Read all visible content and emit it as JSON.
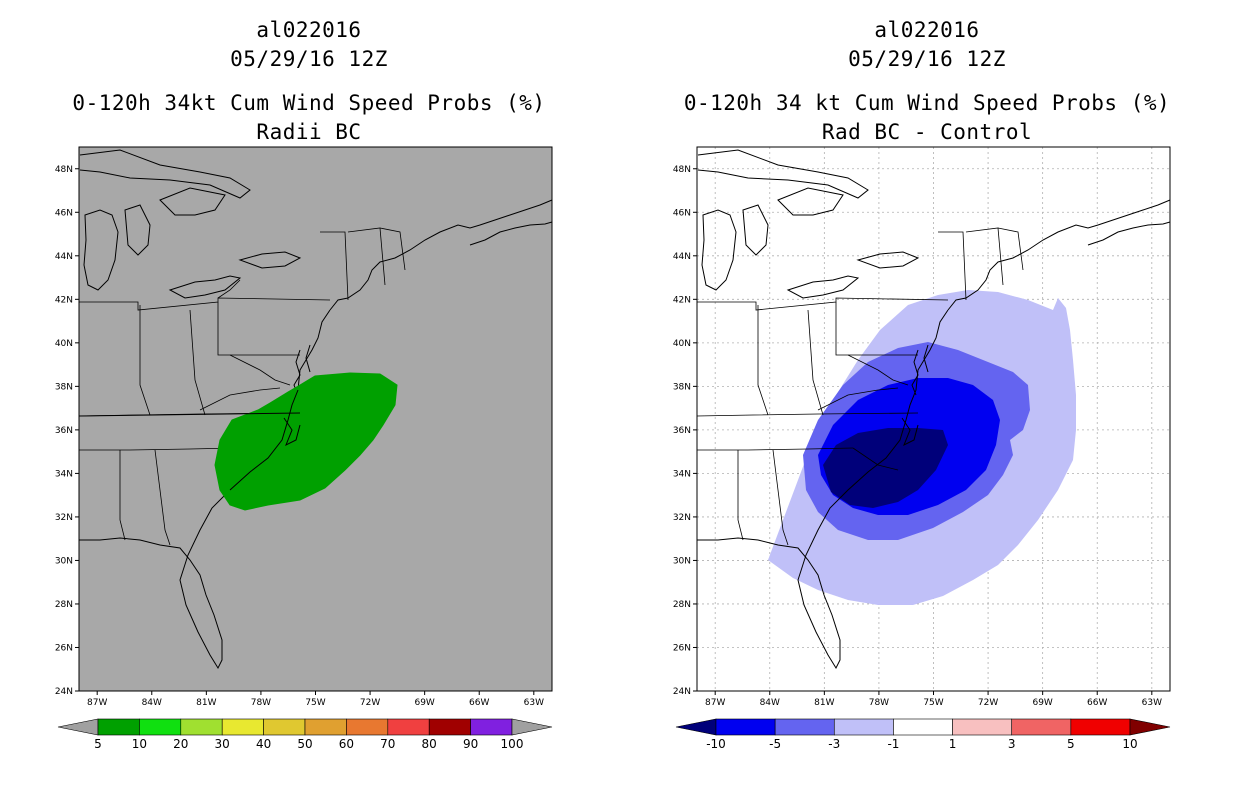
{
  "left": {
    "storm_id": "al022016",
    "datetime": "05/29/16 12Z",
    "title": "0-120h 34kt Cum Wind Speed Probs (%)",
    "subtitle": "Radii BC",
    "map_background": "#a8a8a8",
    "colorbar": {
      "labels": [
        "5",
        "10",
        "20",
        "30",
        "40",
        "50",
        "60",
        "70",
        "80",
        "90",
        "100"
      ],
      "colors": [
        "#a0a0a0",
        "#00a000",
        "#10e010",
        "#a0e030",
        "#e8e830",
        "#e0c830",
        "#e0a030",
        "#e87830",
        "#f04040",
        "#a00000",
        "#8020e0",
        "#a0a0a0"
      ]
    }
  },
  "right": {
    "storm_id": "al022016",
    "datetime": "05/29/16 12Z",
    "title": "0-120h 34 kt Cum Wind Speed Probs (%)",
    "subtitle": "Rad BC - Control",
    "map_background": "#ffffff",
    "colorbar": {
      "labels": [
        "-10",
        "-5",
        "-3",
        "-1",
        "1",
        "3",
        "5",
        "10"
      ],
      "colors": [
        "#00007a",
        "#0000f0",
        "#6464f0",
        "#c0c0f8",
        "#ffffff",
        "#f8c0c0",
        "#f06464",
        "#f00000",
        "#800000"
      ]
    }
  },
  "axes": {
    "lat_labels": [
      "48N",
      "46N",
      "44N",
      "42N",
      "40N",
      "38N",
      "36N",
      "34N",
      "32N",
      "30N",
      "28N",
      "26N",
      "24N"
    ],
    "lon_labels": [
      "87W",
      "84W",
      "81W",
      "78W",
      "75W",
      "72W",
      "69W",
      "66W",
      "63W"
    ],
    "lat_values": [
      48,
      46,
      44,
      42,
      40,
      38,
      36,
      34,
      32,
      30,
      28,
      26,
      24
    ],
    "lon_values": [
      -87,
      -84,
      -81,
      -78,
      -75,
      -72,
      -69,
      -66,
      -63
    ],
    "lat_range": [
      24,
      49
    ],
    "lon_range": [
      -88,
      -62
    ]
  }
}
